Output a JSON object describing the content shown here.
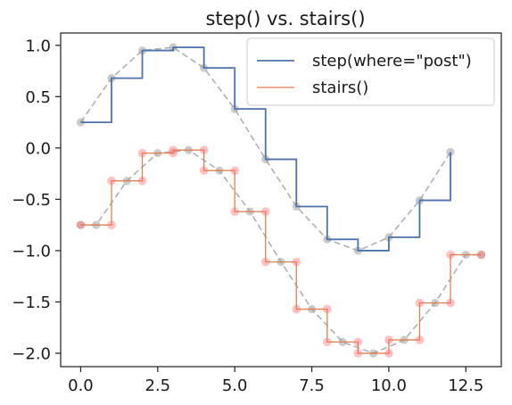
{
  "chart_data": {
    "type": "line",
    "title": "step() vs. stairs()",
    "xlabel": "",
    "ylabel": "",
    "xlim": [
      -0.65,
      13.65
    ],
    "ylim": [
      -2.13,
      1.12
    ],
    "xticks": [
      0.0,
      2.5,
      5.0,
      7.5,
      10.0,
      12.5
    ],
    "xtick_labels": [
      "0.0",
      "2.5",
      "5.0",
      "7.5",
      "10.0",
      "12.5"
    ],
    "yticks": [
      1.0,
      0.5,
      0.0,
      -0.5,
      -1.0,
      -1.5,
      -2.0
    ],
    "ytick_labels": [
      "1.0",
      "0.5",
      "0.0",
      "−0.5",
      "−1.0",
      "−1.5",
      "−2.0"
    ],
    "grid": false,
    "legend_position": "top-right",
    "series": [
      {
        "name": "step(where=\"post\")",
        "kind": "step-post",
        "color": "#4c72b0",
        "x": [
          0,
          1,
          2,
          3,
          4,
          5,
          6,
          7,
          8,
          9,
          10,
          11,
          12
        ],
        "y": [
          0.25,
          0.68,
          0.95,
          0.98,
          0.78,
          0.38,
          -0.11,
          -0.57,
          -0.89,
          -1.0,
          -0.87,
          -0.51,
          -0.04
        ]
      },
      {
        "name": "stairs()",
        "kind": "stairs",
        "color": "#dd8452",
        "edges": [
          0,
          1,
          2,
          3,
          4,
          5,
          6,
          7,
          8,
          9,
          10,
          11,
          12,
          13
        ],
        "values": [
          -0.75,
          -0.32,
          -0.05,
          -0.02,
          -0.22,
          -0.62,
          -1.11,
          -1.57,
          -1.89,
          -2.0,
          -1.87,
          -1.51,
          -1.04
        ]
      }
    ],
    "reference_curves": [
      {
        "color": "#b0b0b0",
        "style": "dashed",
        "markers": "#a0a0a0",
        "x": [
          0,
          1,
          2,
          3,
          4,
          5,
          6,
          7,
          8,
          9,
          10,
          11,
          12
        ],
        "y": [
          0.25,
          0.68,
          0.95,
          0.98,
          0.78,
          0.38,
          -0.11,
          -0.57,
          -0.89,
          -1.0,
          -0.87,
          -0.51,
          -0.04
        ]
      },
      {
        "color": "#b0b0b0",
        "style": "dashed",
        "markers": "#a0a0a0",
        "x": [
          0,
          0.5,
          1.5,
          2.5,
          3.5,
          4.5,
          5.5,
          6.5,
          7.5,
          8.5,
          9.5,
          10.5,
          11.5,
          12.5,
          13
        ],
        "y": [
          -0.75,
          -0.75,
          -0.32,
          -0.05,
          -0.02,
          -0.22,
          -0.62,
          -1.11,
          -1.57,
          -1.89,
          -2.0,
          -1.87,
          -1.51,
          -1.04,
          -1.04
        ]
      }
    ],
    "edge_markers": {
      "color": "#ff6b6b",
      "x": [
        0,
        1,
        1,
        2,
        2,
        3,
        3,
        4,
        4,
        5,
        5,
        6,
        6,
        7,
        7,
        8,
        8,
        9,
        9,
        10,
        10,
        11,
        11,
        12,
        12,
        13
      ],
      "y": [
        -0.75,
        -0.75,
        -0.32,
        -0.32,
        -0.05,
        -0.05,
        -0.02,
        -0.02,
        -0.22,
        -0.22,
        -0.62,
        -0.62,
        -1.11,
        -1.11,
        -1.57,
        -1.57,
        -1.89,
        -1.89,
        -2.0,
        -2.0,
        -1.87,
        -1.87,
        -1.51,
        -1.51,
        -1.04,
        -1.04
      ]
    },
    "colors": {
      "axes_edge": "#262626",
      "background": "#ffffff"
    }
  }
}
